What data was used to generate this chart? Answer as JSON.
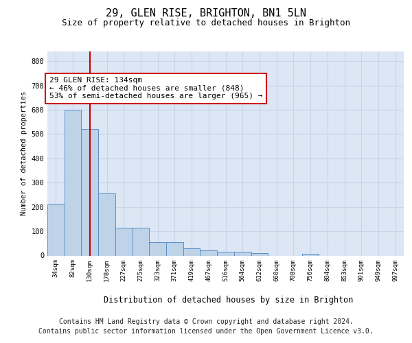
{
  "title": "29, GLEN RISE, BRIGHTON, BN1 5LN",
  "subtitle": "Size of property relative to detached houses in Brighton",
  "xlabel": "Distribution of detached houses by size in Brighton",
  "ylabel": "Number of detached properties",
  "categories": [
    "34sqm",
    "82sqm",
    "130sqm",
    "178sqm",
    "227sqm",
    "275sqm",
    "323sqm",
    "371sqm",
    "419sqm",
    "467sqm",
    "516sqm",
    "564sqm",
    "612sqm",
    "660sqm",
    "708sqm",
    "756sqm",
    "804sqm",
    "853sqm",
    "901sqm",
    "949sqm",
    "997sqm"
  ],
  "values": [
    210,
    600,
    520,
    255,
    115,
    115,
    55,
    55,
    30,
    20,
    15,
    15,
    10,
    0,
    0,
    8,
    0,
    0,
    0,
    0,
    0
  ],
  "bar_color": "#bed3e8",
  "bar_edge_color": "#5b8fc9",
  "vline_x_index": 2,
  "vline_color": "#cc0000",
  "annotation_text": "29 GLEN RISE: 134sqm\n← 46% of detached houses are smaller (848)\n53% of semi-detached houses are larger (965) →",
  "annotation_box_color": "#ffffff",
  "annotation_box_edge_color": "#cc0000",
  "ylim": [
    0,
    840
  ],
  "yticks": [
    0,
    100,
    200,
    300,
    400,
    500,
    600,
    700,
    800
  ],
  "grid_color": "#c8d4e8",
  "background_color": "#dce6f4",
  "footer_line1": "Contains HM Land Registry data © Crown copyright and database right 2024.",
  "footer_line2": "Contains public sector information licensed under the Open Government Licence v3.0.",
  "title_fontsize": 11,
  "subtitle_fontsize": 9,
  "annotation_fontsize": 8,
  "footer_fontsize": 7,
  "xlabel_fontsize": 8.5
}
